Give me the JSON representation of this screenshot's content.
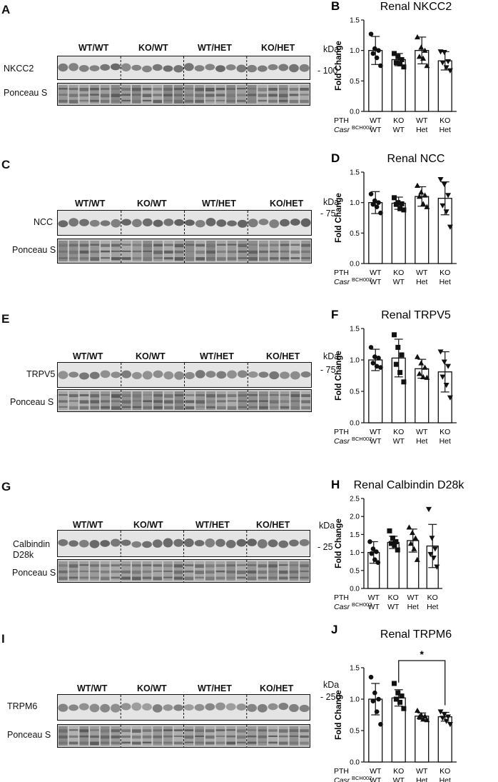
{
  "panels": [
    {
      "letter": "A",
      "groups": [
        "WT/WT",
        "KO/WT",
        "WT/HET",
        "KO/HET"
      ],
      "protein_label": [
        "NKCC2"
      ],
      "loading_label": "Ponceau S",
      "kda_header": "kDa",
      "kda_marker": "- 100"
    },
    {
      "letter": "C",
      "groups": [
        "WT/WT",
        "KO/WT",
        "WT/HET",
        "KO/HET"
      ],
      "protein_label": [
        "NCC"
      ],
      "loading_label": "Ponceau S",
      "kda_header": "kDa",
      "kda_marker": "- 75"
    },
    {
      "letter": "E",
      "groups": [
        "WT/WT",
        "KO/WT",
        "WT/HET",
        "KO/HET"
      ],
      "protein_label": [
        "TRPV5"
      ],
      "loading_label": "Ponceau S",
      "kda_header": "kDa",
      "kda_marker": "- 75"
    },
    {
      "letter": "G",
      "groups": [
        "WT/WT",
        "KO/WT",
        "WT/HET",
        "KO/HET"
      ],
      "protein_label": [
        "Calbindin",
        "D28k"
      ],
      "loading_label": "Ponceau S",
      "kda_header": "kDa",
      "kda_marker": "- 25"
    },
    {
      "letter": "I",
      "groups": [
        "WT/WT",
        "KO/WT",
        "WT/HET",
        "KO/HET"
      ],
      "protein_label": [
        "TRPM6"
      ],
      "loading_label": "Ponceau S",
      "kda_header": "kDa",
      "kda_marker": "- 250"
    }
  ],
  "chart_data": [
    {
      "letter": "B",
      "type": "bar",
      "title": "Renal NKCC2",
      "ylabel": "Fold Change",
      "ylim": [
        0,
        1.5
      ],
      "yticks": [
        "0.0",
        "0.5",
        "1.0",
        "1.5"
      ],
      "row_labels": [
        "PTH",
        "Casr",
        "BCH002"
      ],
      "categories_pth": [
        "WT",
        "KO",
        "WT",
        "KO"
      ],
      "categories_casr": [
        "WT",
        "WT",
        "Het",
        "Het"
      ],
      "means": [
        1.0,
        0.85,
        1.0,
        0.83
      ],
      "sd": [
        0.23,
        0.1,
        0.22,
        0.15
      ],
      "points": [
        [
          1.27,
          1.03,
          1.0,
          0.95,
          0.88,
          0.75
        ],
        [
          0.95,
          0.9,
          0.85,
          0.8,
          0.78,
          0.73
        ],
        [
          1.22,
          1.05,
          1.0,
          0.9,
          0.87,
          0.75
        ],
        [
          0.98,
          0.97,
          0.82,
          0.8,
          0.72,
          0.67
        ]
      ],
      "markers": [
        "circle",
        "square",
        "triangle",
        "triangle-down"
      ],
      "significance": null
    },
    {
      "letter": "D",
      "type": "bar",
      "title": "Renal NCC",
      "ylabel": "Fold Change",
      "ylim": [
        0,
        1.5
      ],
      "yticks": [
        "0.0",
        "0.5",
        "1.0",
        "1.5"
      ],
      "row_labels": [
        "PTH",
        "Casr",
        "BCH002"
      ],
      "categories_pth": [
        "WT",
        "KO",
        "WT",
        "KO"
      ],
      "categories_casr": [
        "WT",
        "WT",
        "Het",
        "Het"
      ],
      "means": [
        1.0,
        0.99,
        1.1,
        1.07
      ],
      "sd": [
        0.18,
        0.1,
        0.16,
        0.27
      ],
      "points": [
        [
          1.14,
          1.03,
          1.0,
          0.97,
          0.93,
          0.83
        ],
        [
          1.08,
          1.0,
          0.98,
          0.97,
          0.9,
          0.88
        ],
        [
          1.28,
          1.17,
          1.12,
          1.1,
          0.98,
          0.93
        ],
        [
          1.38,
          1.3,
          1.12,
          0.95,
          0.85,
          0.6
        ]
      ],
      "markers": [
        "circle",
        "square",
        "triangle",
        "triangle-down"
      ],
      "significance": null
    },
    {
      "letter": "F",
      "type": "bar",
      "title": "Renal TRPV5",
      "ylabel": "Fold Change",
      "ylim": [
        0,
        1.5
      ],
      "yticks": [
        "0.0",
        "0.5",
        "1.0",
        "1.5"
      ],
      "row_labels": [
        "PTH",
        "Casr",
        "BCH002"
      ],
      "categories_pth": [
        "WT",
        "KO",
        "WT",
        "KO"
      ],
      "categories_casr": [
        "WT",
        "WT",
        "Het",
        "Het"
      ],
      "means": [
        1.0,
        1.03,
        0.86,
        0.81
      ],
      "sd": [
        0.17,
        0.3,
        0.15,
        0.32
      ],
      "points": [
        [
          1.2,
          1.05,
          1.03,
          0.95,
          0.9,
          0.88
        ],
        [
          1.4,
          1.2,
          1.08,
          0.93,
          0.8,
          0.65
        ],
        [
          1.05,
          0.95,
          0.88,
          0.78,
          0.73,
          0.72
        ],
        [
          1.13,
          0.97,
          0.9,
          0.73,
          0.6,
          0.4
        ]
      ],
      "markers": [
        "circle",
        "square",
        "triangle",
        "triangle-down"
      ],
      "significance": null
    },
    {
      "letter": "H",
      "type": "bar",
      "title": "Renal Calbindin D28k",
      "ylabel": "Fold Change",
      "ylim": [
        0,
        2.5
      ],
      "yticks": [
        "0.0",
        "0.5",
        "1.0",
        "1.5",
        "2.0",
        "2.5"
      ],
      "row_labels": [
        "PTH",
        "Casr",
        "BCH002"
      ],
      "categories_pth": [
        "WT",
        "KO",
        "WT",
        "KO"
      ],
      "categories_casr": [
        "WT",
        "WT",
        "Het",
        "Het"
      ],
      "means": [
        1.0,
        1.28,
        1.33,
        1.18
      ],
      "sd": [
        0.3,
        0.17,
        0.32,
        0.6
      ],
      "points": [
        [
          1.3,
          1.1,
          1.02,
          0.97,
          0.8,
          0.72
        ],
        [
          1.6,
          1.4,
          1.3,
          1.25,
          1.2,
          1.07
        ],
        [
          1.7,
          1.55,
          1.4,
          1.25,
          1.1,
          0.8
        ],
        [
          2.2,
          1.4,
          1.1,
          0.95,
          0.85,
          0.6
        ]
      ],
      "markers": [
        "circle",
        "square",
        "triangle",
        "triangle-down"
      ],
      "significance": null
    },
    {
      "letter": "J",
      "type": "bar",
      "title": "Renal TRPM6",
      "ylabel": "Fold Change",
      "ylim": [
        0,
        1.5
      ],
      "yticks": [
        "0.0",
        "0.5",
        "1.0",
        "1.5"
      ],
      "row_labels": [
        "PTH",
        "Casr",
        "BCH002"
      ],
      "categories_pth": [
        "WT",
        "KO",
        "WT",
        "KO"
      ],
      "categories_casr": [
        "WT",
        "WT",
        "Het",
        "Het"
      ],
      "means": [
        1.0,
        1.02,
        0.73,
        0.72
      ],
      "sd": [
        0.25,
        0.13,
        0.05,
        0.07
      ],
      "points": [
        [
          1.35,
          1.1,
          1.0,
          0.97,
          0.8,
          0.6
        ],
        [
          1.25,
          1.1,
          1.05,
          1.0,
          0.95,
          0.85
        ],
        [
          0.82,
          0.75,
          0.73,
          0.72,
          0.68,
          0.67
        ],
        [
          0.8,
          0.76,
          0.72,
          0.7,
          0.65,
          0.6
        ]
      ],
      "markers": [
        "circle",
        "square",
        "triangle",
        "triangle-down"
      ],
      "significance": {
        "from": 1,
        "to": 3,
        "label": "*"
      }
    }
  ]
}
